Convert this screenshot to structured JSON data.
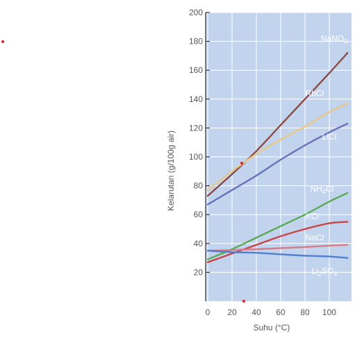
{
  "chart_data": {
    "type": "line",
    "title": "",
    "xlabel": "Suhu (°C)",
    "ylabel": "Kelarutan (g/100g air)",
    "xlim": [
      0,
      120
    ],
    "ylim": [
      0,
      200
    ],
    "xticks": [
      0,
      20,
      40,
      60,
      80,
      100
    ],
    "xtick_labels": [
      "0",
      "20",
      "40",
      "60",
      "80",
      "100"
    ],
    "yticks": [
      20,
      40,
      60,
      80,
      100,
      120,
      140,
      160,
      180,
      200
    ],
    "ytick_labels": [
      "20",
      "40",
      "60",
      "80",
      "100",
      "120",
      "140",
      "160",
      "180",
      "200"
    ],
    "grid": true,
    "colors": {
      "plot_bg": "#c2d3ee",
      "grid": "#ffffff"
    },
    "series": [
      {
        "name": "NaNO₃",
        "label_parts": [
          {
            "t": "NaNO"
          },
          {
            "t": "3",
            "sub": true
          }
        ],
        "color": "#8a4a44",
        "x": [
          0,
          20,
          40,
          60,
          80,
          100,
          115
        ],
        "y": [
          73,
          88,
          104,
          122,
          140,
          158,
          172
        ]
      },
      {
        "name": "RbCl",
        "label_parts": [
          {
            "t": "RbCl"
          }
        ],
        "color": "#e6c888",
        "x": [
          0,
          20,
          40,
          60,
          80,
          100,
          115
        ],
        "y": [
          77,
          90,
          102,
          112,
          121,
          131,
          137
        ]
      },
      {
        "name": "LiCl",
        "label_parts": [
          {
            "t": "LiCl"
          }
        ],
        "color": "#6870b8",
        "x": [
          0,
          20,
          40,
          60,
          80,
          100,
          115
        ],
        "y": [
          67,
          77,
          87,
          98,
          108,
          117,
          123
        ]
      },
      {
        "name": "NH₄Cl",
        "label_parts": [
          {
            "t": "NH"
          },
          {
            "t": "4",
            "sub": true
          },
          {
            "t": "Cl"
          }
        ],
        "color": "#5aaa55",
        "x": [
          0,
          20,
          40,
          60,
          80,
          100,
          115
        ],
        "y": [
          29,
          36,
          44,
          52,
          60,
          69,
          75
        ]
      },
      {
        "name": "KCl",
        "label_parts": [
          {
            "t": "KCl"
          }
        ],
        "color": "#c84545",
        "x": [
          0,
          20,
          40,
          60,
          80,
          100,
          115
        ],
        "y": [
          27,
          33,
          39,
          45,
          50,
          54,
          55
        ]
      },
      {
        "name": "NaCl",
        "label_parts": [
          {
            "t": "NaCl"
          }
        ],
        "color": "#d87c88",
        "x": [
          0,
          20,
          40,
          60,
          80,
          100,
          115
        ],
        "y": [
          35,
          35.5,
          36,
          36.8,
          37.5,
          38.5,
          39
        ]
      },
      {
        "name": "Li₂SO₄",
        "label_parts": [
          {
            "t": "Li"
          },
          {
            "t": "2",
            "sub": true
          },
          {
            "t": "SO"
          },
          {
            "t": "4",
            "sub": true
          }
        ],
        "color": "#5080d0",
        "x": [
          0,
          20,
          40,
          60,
          80,
          100,
          115
        ],
        "y": [
          35,
          34,
          33.5,
          32.5,
          31.5,
          31,
          30
        ]
      }
    ]
  }
}
